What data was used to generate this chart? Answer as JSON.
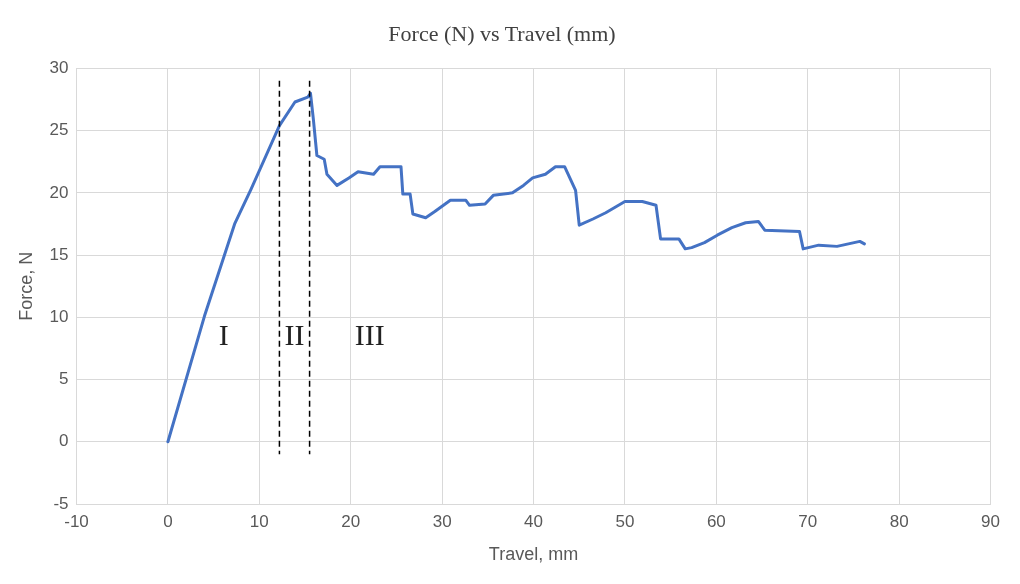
{
  "chart_data": {
    "type": "line",
    "title": "Force (N) vs Travel (mm)",
    "xlabel": "Travel, mm",
    "ylabel": "Force, N",
    "series": [
      {
        "color": "#4472c4",
        "x": [
          0,
          4.0,
          7.3,
          9.1,
          12.2,
          13.9,
          15.3,
          15.6,
          15.9,
          16.3,
          17.1,
          17.4,
          18.5,
          19.8,
          20.8,
          22.5,
          23.2,
          25.5,
          25.7,
          26.5,
          26.8,
          28.2,
          29.2,
          30.9,
          32.6,
          33,
          34.7,
          35.6,
          37.7,
          38.9,
          39.9,
          41.3,
          42.4,
          43.4,
          44.6,
          45,
          46.5,
          47.9,
          50,
          51.9,
          53.4,
          53.9,
          55.9,
          56.6,
          57.3,
          58.7,
          60.1,
          61.7,
          63.2,
          64.6,
          65.3,
          69.1,
          69.5,
          71.2,
          73.2,
          75.7,
          76.2
        ],
        "values": [
          0,
          10.1,
          17.5,
          20.3,
          25.4,
          27.3,
          27.7,
          28.0,
          26,
          23.0,
          22.7,
          21.5,
          20.6,
          21.2,
          21.7,
          21.5,
          22.1,
          22.1,
          19.9,
          19.9,
          18.3,
          18.0,
          18.5,
          19.4,
          19.4,
          19.0,
          19.1,
          19.8,
          20.0,
          20.6,
          21.2,
          21.5,
          22.1,
          22.1,
          20.2,
          17.4,
          17.9,
          18.4,
          19.3,
          19.3,
          19.0,
          16.3,
          16.3,
          15.5,
          15.6,
          16.0,
          16.6,
          17.2,
          17.6,
          17.7,
          17.0,
          16.9,
          15.5,
          15.8,
          15.7,
          16.1,
          15.9
        ]
      }
    ],
    "xlim": [
      -10,
      90
    ],
    "xticks": [
      -10,
      0,
      10,
      20,
      30,
      40,
      50,
      60,
      70,
      80,
      90
    ],
    "ylim": [
      -5,
      30
    ],
    "yticks": [
      -5,
      0,
      5,
      10,
      15,
      20,
      25,
      30
    ],
    "grid": true,
    "legend": false,
    "marker": "none",
    "line_style": "solid",
    "ref_lines": [
      {
        "axis": "x",
        "value": 12.2,
        "color": "#000000",
        "line_style": "dashed"
      },
      {
        "axis": "x",
        "value": 15.5,
        "color": "#000000",
        "line_style": "dashed"
      }
    ],
    "annotations": [
      "I",
      "II",
      "III"
    ]
  }
}
